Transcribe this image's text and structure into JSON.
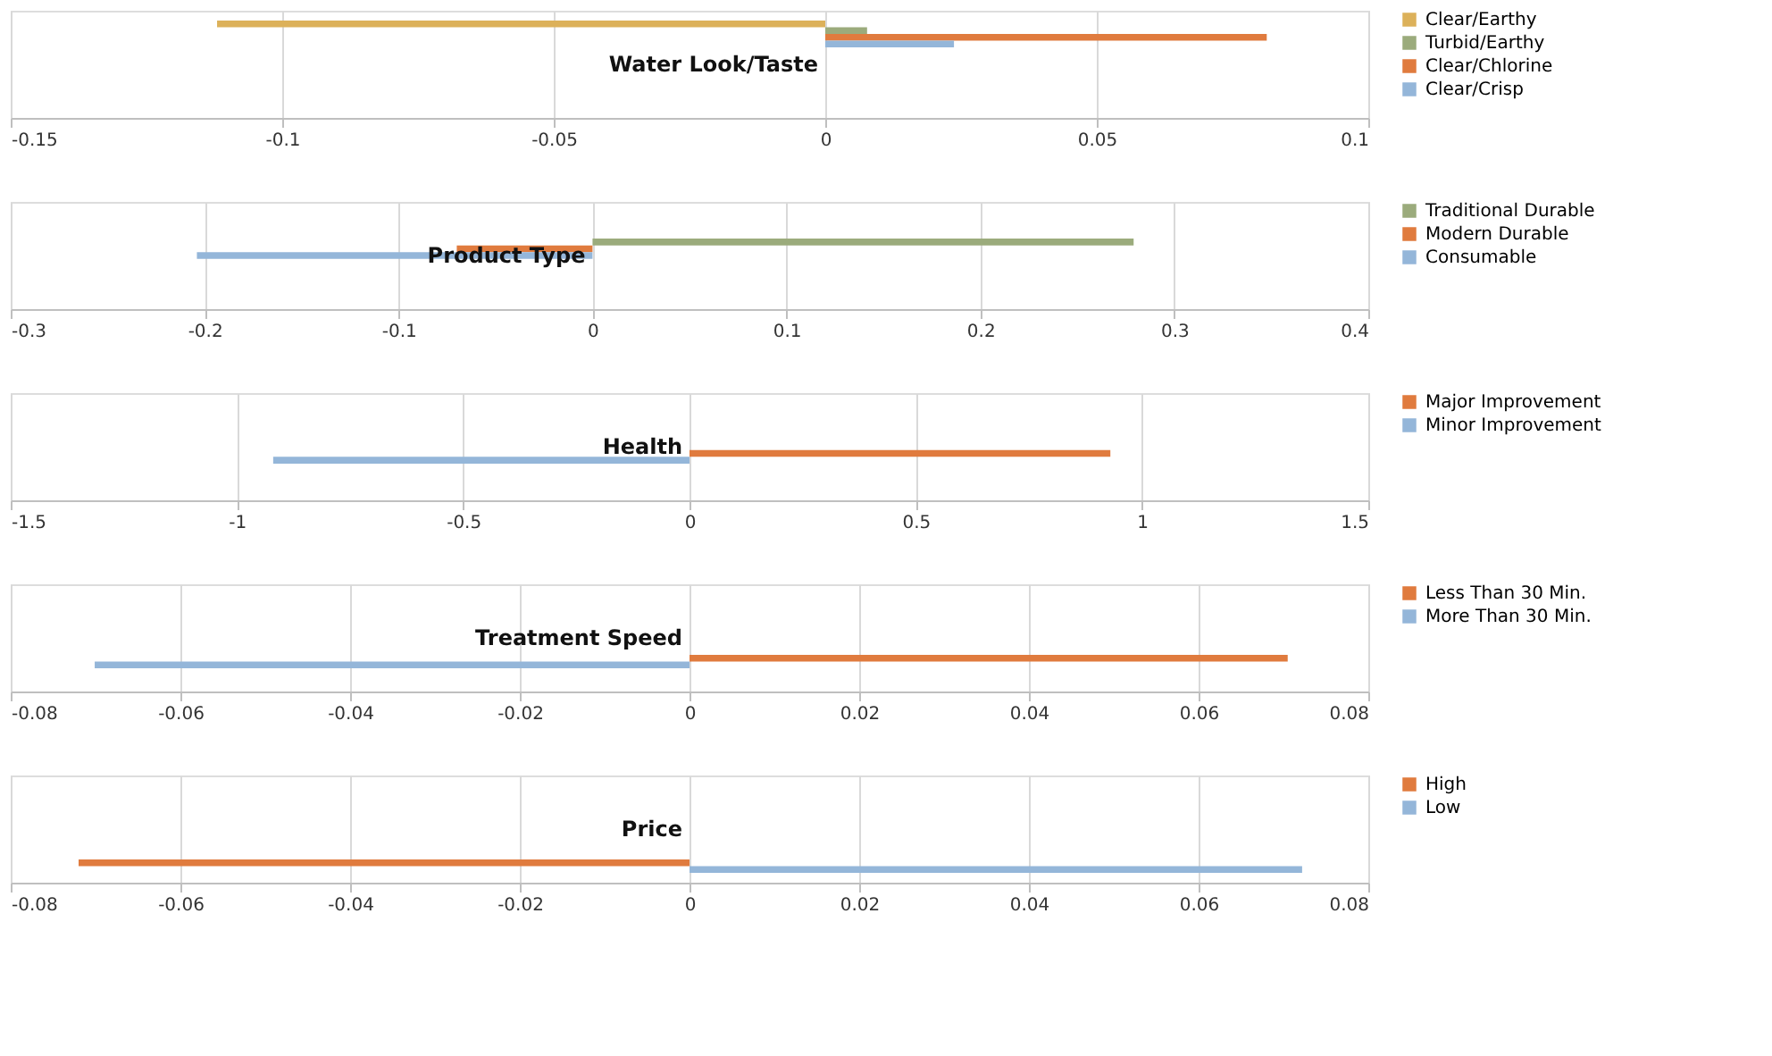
{
  "chart_data": [
    {
      "type": "bar",
      "orientation": "horizontal",
      "categories": [
        "Water Look/Taste"
      ],
      "xlim": [
        -0.15,
        0.1
      ],
      "xticks": [
        -0.15,
        -0.1,
        -0.05,
        0,
        0.05,
        0.1
      ],
      "grid": "x",
      "legend": "right",
      "series": [
        {
          "name": "Clear/Earthy",
          "color": "#dcb15a",
          "values": [
            -0.112
          ]
        },
        {
          "name": "Turbid/Earthy",
          "color": "#9bab7c",
          "values": [
            0.0077
          ]
        },
        {
          "name": "Clear/Chlorine",
          "color": "#e07b3e",
          "values": [
            0.0813
          ]
        },
        {
          "name": "Clear/Crisp",
          "color": "#94b6d9",
          "values": [
            0.0237
          ]
        }
      ]
    },
    {
      "type": "bar",
      "orientation": "horizontal",
      "categories": [
        "Product Type"
      ],
      "xlim": [
        -0.3,
        0.4
      ],
      "xticks": [
        -0.3,
        -0.2,
        -0.1,
        0,
        0.1,
        0.2,
        0.3,
        0.4
      ],
      "grid": "x",
      "legend": "right",
      "series": [
        {
          "name": "Traditional Durable",
          "color": "#9bab7c",
          "values": [
            0.279
          ]
        },
        {
          "name": "Modern Durable",
          "color": "#e07b3e",
          "values": [
            -0.07
          ]
        },
        {
          "name": "Consumable",
          "color": "#94b6d9",
          "values": [
            -0.204
          ]
        }
      ]
    },
    {
      "type": "bar",
      "orientation": "horizontal",
      "categories": [
        "Health"
      ],
      "xlim": [
        -1.5,
        1.5
      ],
      "xticks": [
        -1.5,
        -1,
        -0.5,
        0,
        0.5,
        1,
        1.5
      ],
      "grid": "x",
      "legend": "right",
      "series": [
        {
          "name": "Major Improvement",
          "color": "#e07b3e",
          "values": [
            0.93
          ]
        },
        {
          "name": "Minor Improvement",
          "color": "#94b6d9",
          "values": [
            -0.92
          ]
        }
      ]
    },
    {
      "type": "bar",
      "orientation": "horizontal",
      "categories": [
        "Treatment Speed"
      ],
      "xlim": [
        -0.08,
        0.08
      ],
      "xticks": [
        -0.08,
        -0.06,
        -0.04,
        -0.02,
        0,
        0.02,
        0.04,
        0.06,
        0.08
      ],
      "grid": "x",
      "legend": "right",
      "series": [
        {
          "name": "Less Than 30 Min.",
          "color": "#e07b3e",
          "values": [
            0.0705
          ]
        },
        {
          "name": "More Than 30 Min.",
          "color": "#94b6d9",
          "values": [
            -0.0701
          ]
        }
      ]
    },
    {
      "type": "bar",
      "orientation": "horizontal",
      "categories": [
        "Price"
      ],
      "xlim": [
        -0.08,
        0.08
      ],
      "xticks": [
        -0.08,
        -0.06,
        -0.04,
        -0.02,
        0,
        0.02,
        0.04,
        0.06,
        0.08
      ],
      "grid": "x",
      "legend": "right",
      "series": [
        {
          "name": "High",
          "color": "#e07b3e",
          "values": [
            -0.072
          ]
        },
        {
          "name": "Low",
          "color": "#94b6d9",
          "values": [
            0.0722
          ]
        }
      ]
    }
  ]
}
